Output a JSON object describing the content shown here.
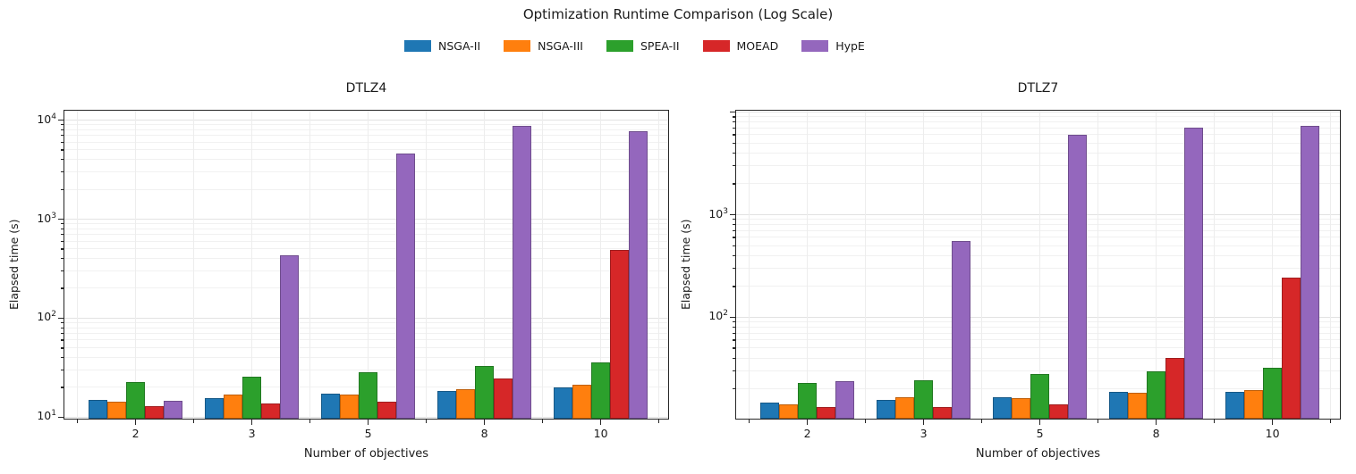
{
  "figure": {
    "title": "Optimization Runtime Comparison (Log Scale)",
    "background": "#ffffff"
  },
  "legend": {
    "position": "top-center",
    "entries": [
      {
        "label": "NSGA-II",
        "color": "#1f77b4"
      },
      {
        "label": "NSGA-III",
        "color": "#ff7f0e"
      },
      {
        "label": "SPEA-II",
        "color": "#2ca02c"
      },
      {
        "label": "MOEAD",
        "color": "#d62728"
      },
      {
        "label": "HypE",
        "color": "#9467bd"
      }
    ]
  },
  "chart_data": [
    {
      "type": "bar",
      "title": "DTLZ4",
      "xlabel": "Number of objectives",
      "ylabel": "Elapsed time (s)",
      "yscale": "log",
      "grid": "both",
      "categories": [
        "2",
        "3",
        "5",
        "8",
        "10"
      ],
      "series": [
        {
          "name": "NSGA-II",
          "color": "#1f77b4",
          "values": [
            15.2,
            15.9,
            17.5,
            18.7,
            20.1
          ]
        },
        {
          "name": "NSGA-III",
          "color": "#ff7f0e",
          "values": [
            14.6,
            17.0,
            17.2,
            19.4,
            21.5
          ]
        },
        {
          "name": "SPEA-II",
          "color": "#2ca02c",
          "values": [
            23.1,
            25.9,
            29.0,
            33.5,
            36.0
          ]
        },
        {
          "name": "MOEAD",
          "color": "#d62728",
          "values": [
            13.1,
            14.0,
            14.6,
            24.8,
            495
          ]
        },
        {
          "name": "HypE",
          "color": "#9467bd",
          "values": [
            14.7,
            440,
            4700,
            8800,
            7900
          ]
        }
      ],
      "ylim": [
        9.8,
        12300
      ],
      "yticks_labeled": [
        10,
        100,
        1000,
        10000
      ]
    },
    {
      "type": "bar",
      "title": "DTLZ7",
      "xlabel": "Number of objectives",
      "ylabel": "Elapsed time (s)",
      "yscale": "log",
      "grid": "both",
      "categories": [
        "2",
        "3",
        "5",
        "8",
        "10"
      ],
      "series": [
        {
          "name": "NSGA-II",
          "color": "#1f77b4",
          "values": [
            15.0,
            15.7,
            16.7,
            18.9,
            18.9
          ]
        },
        {
          "name": "NSGA-III",
          "color": "#ff7f0e",
          "values": [
            14.4,
            16.7,
            16.4,
            18.5,
            19.6
          ]
        },
        {
          "name": "SPEA-II",
          "color": "#2ca02c",
          "values": [
            23.4,
            24.7,
            28.3,
            30.1,
            32.3
          ]
        },
        {
          "name": "MOEAD",
          "color": "#d62728",
          "values": [
            13.5,
            13.5,
            14.3,
            41,
            245
          ]
        },
        {
          "name": "HypE",
          "color": "#9467bd",
          "values": [
            24.1,
            560,
            6050,
            7100,
            7400
          ]
        }
      ],
      "ylim": [
        10.4,
        10200
      ],
      "yticks_labeled": [
        100,
        1000
      ]
    }
  ]
}
